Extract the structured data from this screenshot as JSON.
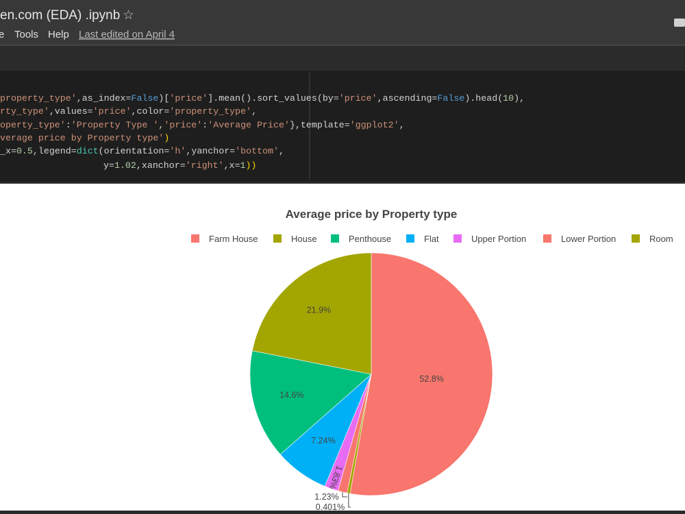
{
  "header": {
    "title": "en.com (EDA) .ipynb",
    "menu": [
      "e",
      "Tools",
      "Help"
    ],
    "last_edited": "Last edited on April 4"
  },
  "code_lines": [
    [
      {
        "text": "property_type'",
        "color": "#ce9178"
      },
      {
        "text": ",as_index=",
        "color": "#d4d4d4"
      },
      {
        "text": "False",
        "color": "#569cd6"
      },
      {
        "text": ")[",
        "color": "#d4d4d4"
      },
      {
        "text": "'price'",
        "color": "#ce9178"
      },
      {
        "text": "].mean().sort_values(by=",
        "color": "#d4d4d4"
      },
      {
        "text": "'price'",
        "color": "#ce9178"
      },
      {
        "text": ",ascending=",
        "color": "#d4d4d4"
      },
      {
        "text": "False",
        "color": "#569cd6"
      },
      {
        "text": ").head(",
        "color": "#d4d4d4"
      },
      {
        "text": "10",
        "color": "#b5cea8"
      },
      {
        "text": "),",
        "color": "#d4d4d4"
      }
    ],
    [
      {
        "text": "rty_type'",
        "color": "#ce9178"
      },
      {
        "text": ",values=",
        "color": "#d4d4d4"
      },
      {
        "text": "'price'",
        "color": "#ce9178"
      },
      {
        "text": ",color=",
        "color": "#d4d4d4"
      },
      {
        "text": "'property_type'",
        "color": "#ce9178"
      },
      {
        "text": ",",
        "color": "#d4d4d4"
      }
    ],
    [
      {
        "text": "operty_type'",
        "color": "#ce9178"
      },
      {
        "text": ":",
        "color": "#d4d4d4"
      },
      {
        "text": "'Property Type '",
        "color": "#ce9178"
      },
      {
        "text": ",",
        "color": "#d4d4d4"
      },
      {
        "text": "'price'",
        "color": "#ce9178"
      },
      {
        "text": ":",
        "color": "#d4d4d4"
      },
      {
        "text": "'Average Price'",
        "color": "#ce9178"
      },
      {
        "text": "},template=",
        "color": "#d4d4d4"
      },
      {
        "text": "'ggplot2'",
        "color": "#ce9178"
      },
      {
        "text": ",",
        "color": "#d4d4d4"
      }
    ],
    [
      {
        "text": "verage price by Property type'",
        "color": "#ce9178"
      },
      {
        "text": ")",
        "color": "#ffd700"
      }
    ],
    [
      {
        "text": "_x=",
        "color": "#d4d4d4"
      },
      {
        "text": "0.5",
        "color": "#b5cea8"
      },
      {
        "text": ",legend=",
        "color": "#d4d4d4"
      },
      {
        "text": "dict",
        "color": "#4ec9b0"
      },
      {
        "text": "(orientation=",
        "color": "#d4d4d4"
      },
      {
        "text": "'h'",
        "color": "#ce9178"
      },
      {
        "text": ",yanchor=",
        "color": "#d4d4d4"
      },
      {
        "text": "'bottom'",
        "color": "#ce9178"
      },
      {
        "text": ",",
        "color": "#d4d4d4"
      }
    ],
    [
      {
        "text": "y=",
        "color": "#d4d4d4"
      },
      {
        "text": "1.02",
        "color": "#b5cea8"
      },
      {
        "text": ",xanchor=",
        "color": "#d4d4d4"
      },
      {
        "text": "'right'",
        "color": "#ce9178"
      },
      {
        "text": ",x=",
        "color": "#d4d4d4"
      },
      {
        "text": "1",
        "color": "#b5cea8"
      },
      {
        "text": "))",
        "color": "#ffd700"
      }
    ]
  ],
  "chart_data": {
    "type": "pie",
    "title": "Average price by Property type",
    "categories": [
      "Farm House",
      "House",
      "Penthouse",
      "Flat",
      "Upper Portion",
      "Lower Portion",
      "Room"
    ],
    "values": [
      52.8,
      21.9,
      14.6,
      7.24,
      1.83,
      1.23,
      0.401
    ],
    "value_labels": [
      "52.8%",
      "21.9%",
      "14.6%",
      "7.24%",
      "1.83%",
      "1.23%",
      "0.401%"
    ],
    "colors": [
      "#F8766D",
      "#A3A500",
      "#00BF7D",
      "#00B0F6",
      "#E76BF3",
      "#F8766D",
      "#A3A500"
    ],
    "legend": "top-right"
  }
}
